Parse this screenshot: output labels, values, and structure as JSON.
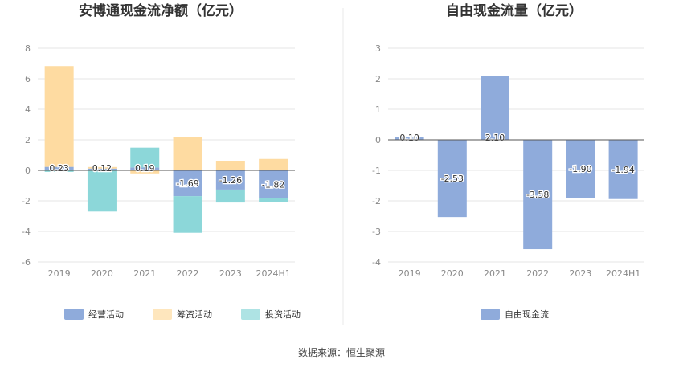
{
  "chart_data": [
    {
      "type": "bar",
      "stacked": true,
      "title": "安博通现金流净额（亿元）",
      "categories": [
        "2019",
        "2020",
        "2021",
        "2022",
        "2023",
        "2024H1"
      ],
      "ylim": [
        -6,
        8
      ],
      "yticks": [
        -6,
        -4,
        -2,
        0,
        2,
        4,
        6,
        8
      ],
      "grid": true,
      "legend_position": "bottom",
      "series": [
        {
          "name": "经营活动",
          "color": "#8fabdb",
          "values": [
            0.23,
            0.12,
            0.19,
            -1.69,
            -1.26,
            -1.82
          ]
        },
        {
          "name": "筹资活动",
          "color": "#fedba1",
          "values": [
            6.6,
            0.1,
            -0.2,
            2.2,
            0.6,
            0.75
          ]
        },
        {
          "name": "投资活动",
          "color": "#8cd7d9",
          "values": [
            -0.1,
            -2.7,
            1.3,
            -2.4,
            -0.85,
            -0.25
          ]
        }
      ],
      "data_labels": [
        "0.23",
        "0.12",
        "0.19",
        "-1.69",
        "-1.26",
        "-1.82"
      ]
    },
    {
      "type": "bar",
      "title": "自由现金流量（亿元）",
      "categories": [
        "2019",
        "2020",
        "2021",
        "2022",
        "2023",
        "2024H1"
      ],
      "ylim": [
        -4,
        3
      ],
      "yticks": [
        -4,
        -3,
        -2,
        -1,
        0,
        1,
        2,
        3
      ],
      "grid": true,
      "legend_position": "bottom",
      "series": [
        {
          "name": "自由现金流",
          "color": "#8fabdb",
          "values": [
            0.1,
            -2.53,
            2.1,
            -3.58,
            -1.9,
            -1.94
          ]
        }
      ],
      "data_labels": [
        "0.10",
        "-2.53",
        "2.10",
        "-3.58",
        "-1.90",
        "-1.94"
      ]
    }
  ],
  "source": "数据来源：恒生聚源"
}
